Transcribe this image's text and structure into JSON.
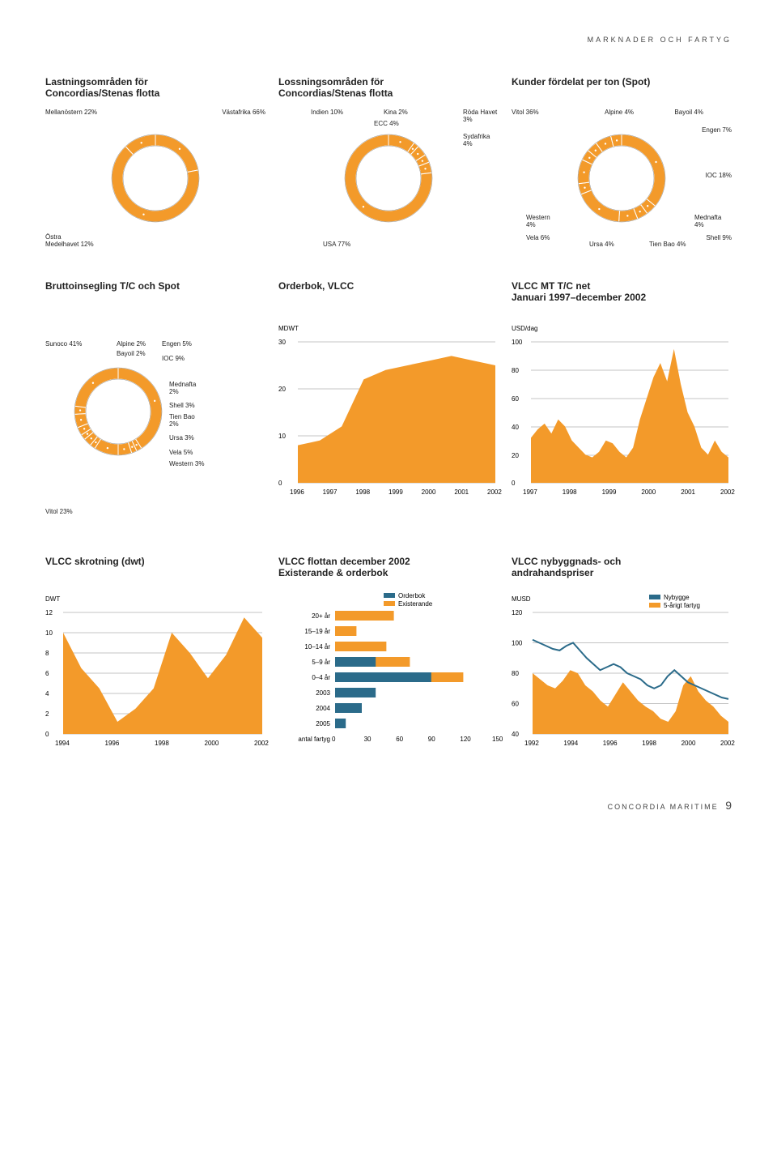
{
  "header": "MARKNADER OCH FARTYG",
  "footer_text": "CONCORDIA MARITIME",
  "footer_page": "9",
  "colors": {
    "orange": "#f39a2a",
    "blue": "#3a6f8f",
    "teal": "#2b6b8a",
    "grid": "#888888"
  },
  "row1": {
    "lastning": {
      "title": "Lastningsområden för\nConcordias/Stenas flotta",
      "slices": [
        {
          "label": "Mellanöstern 22%",
          "value": 22,
          "color": "#f39a2a"
        },
        {
          "label": "Västafrika 66%",
          "value": 66,
          "color": "#f39a2a"
        },
        {
          "label": "Östra Medelhavet 12%",
          "value": 12,
          "color": "#f39a2a"
        }
      ]
    },
    "lossning": {
      "title": "Lossningsområden för\nConcordias/Stenas flotta",
      "slices": [
        {
          "label": "Indien 10%",
          "value": 10,
          "color": "#f39a2a"
        },
        {
          "label": "Kina 2%",
          "value": 2,
          "color": "#f39a2a"
        },
        {
          "label": "ECC 4%",
          "value": 4,
          "color": "#f39a2a"
        },
        {
          "label": "Röda Havet 3%",
          "value": 3,
          "color": "#f39a2a"
        },
        {
          "label": "Sydafrika 4%",
          "value": 4,
          "color": "#f39a2a"
        },
        {
          "label": "USA 77%",
          "value": 77,
          "color": "#f39a2a"
        }
      ]
    },
    "kunder": {
      "title": "Kunder fördelat per ton (Spot)",
      "slices": [
        {
          "label": "Vitol 36%",
          "value": 36,
          "color": "#f39a2a"
        },
        {
          "label": "Alpine 4%",
          "value": 4,
          "color": "#f39a2a"
        },
        {
          "label": "Bayoil 4%",
          "value": 4,
          "color": "#f39a2a"
        },
        {
          "label": "Engen 7%",
          "value": 7,
          "color": "#f39a2a"
        },
        {
          "label": "IOC 18%",
          "value": 18,
          "color": "#f39a2a"
        },
        {
          "label": "Mednafta 4%",
          "value": 4,
          "color": "#f39a2a"
        },
        {
          "label": "Shell 9%",
          "value": 9,
          "color": "#f39a2a"
        },
        {
          "label": "Tien Bao 4%",
          "value": 4,
          "color": "#f39a2a"
        },
        {
          "label": "Ursa 4%",
          "value": 4,
          "color": "#f39a2a"
        },
        {
          "label": "Vela 6%",
          "value": 6,
          "color": "#f39a2a"
        },
        {
          "label": "Western 4%",
          "value": 4,
          "color": "#f39a2a"
        }
      ]
    }
  },
  "row2": {
    "brutto": {
      "title": "Bruttoinsegling T/C och Spot",
      "slices": [
        {
          "label": "Sunoco 41%",
          "value": 41,
          "color": "#f39a2a"
        },
        {
          "label": "Alpine 2%",
          "value": 2,
          "color": "#f39a2a"
        },
        {
          "label": "Bayoil 2%",
          "value": 2,
          "color": "#f39a2a"
        },
        {
          "label": "Engen 5%",
          "value": 5,
          "color": "#f39a2a"
        },
        {
          "label": "IOC 9%",
          "value": 9,
          "color": "#f39a2a"
        },
        {
          "label": "Mednafta 2%",
          "value": 2,
          "color": "#f39a2a"
        },
        {
          "label": "Shell 3%",
          "value": 3,
          "color": "#f39a2a"
        },
        {
          "label": "Tien Bao 2%",
          "value": 2,
          "color": "#f39a2a"
        },
        {
          "label": "Ursa 3%",
          "value": 3,
          "color": "#f39a2a"
        },
        {
          "label": "Vela 5%",
          "value": 5,
          "color": "#f39a2a"
        },
        {
          "label": "Western 3%",
          "value": 3,
          "color": "#f39a2a"
        },
        {
          "label": "Vitol 23%",
          "value": 23,
          "color": "#f39a2a"
        }
      ]
    },
    "orderbok": {
      "title": "Orderbok, VLCC",
      "y_unit": "MDWT",
      "y_ticks": [
        "30",
        "20",
        "10",
        "0"
      ],
      "x_labels": [
        "1996",
        "1997",
        "1998",
        "1999",
        "2000",
        "2001",
        "2002"
      ],
      "area_points": [
        [
          0,
          8
        ],
        [
          28,
          9
        ],
        [
          56,
          12
        ],
        [
          84,
          22
        ],
        [
          112,
          24
        ],
        [
          140,
          25
        ],
        [
          168,
          26
        ],
        [
          196,
          27
        ],
        [
          224,
          26
        ],
        [
          252,
          25
        ]
      ],
      "color": "#f39a2a"
    },
    "tc_net": {
      "title": "VLCC MT T/C net\nJanuari 1997–december 2002",
      "y_unit": "USD/dag",
      "y_ticks": [
        "100",
        "80",
        "60",
        "40",
        "20",
        "0"
      ],
      "x_labels": [
        "1997",
        "1998",
        "1999",
        "2000",
        "2001",
        "2002"
      ],
      "color": "#f39a2a"
    }
  },
  "row3": {
    "skrotning": {
      "title": "VLCC skrotning (dwt)",
      "y_unit": "DWT",
      "y_ticks": [
        "12",
        "10",
        "8",
        "6",
        "4",
        "2",
        "0"
      ],
      "x_labels": [
        "1994",
        "1996",
        "1998",
        "2000",
        "2002"
      ],
      "color": "#f39a2a"
    },
    "flottan": {
      "title": "VLCC flottan december 2002\nExisterande & orderbok",
      "legend": [
        {
          "label": "Orderbok",
          "color": "#2b6b8a"
        },
        {
          "label": "Existerande",
          "color": "#f39a2a"
        }
      ],
      "rows": [
        {
          "label": "20+ år",
          "existing": 55,
          "order": 0
        },
        {
          "label": "15–19 år",
          "existing": 20,
          "order": 0
        },
        {
          "label": "10–14 år",
          "existing": 48,
          "order": 0
        },
        {
          "label": "5–9 år",
          "existing": 70,
          "order": 38
        },
        {
          "label": "0–4 år",
          "existing": 120,
          "order": 90
        },
        {
          "label": "2003",
          "existing": 0,
          "order": 38
        },
        {
          "label": "2004",
          "existing": 0,
          "order": 25
        },
        {
          "label": "2005",
          "existing": 0,
          "order": 10
        }
      ],
      "x_label": "antal fartyg",
      "x_ticks": [
        "0",
        "30",
        "60",
        "90",
        "120",
        "150"
      ]
    },
    "priser": {
      "title": "VLCC nybyggnads- och\nandrahandspriser",
      "y_unit": "MUSD",
      "legend": [
        {
          "label": "Nybygge",
          "color": "#2b6b8a"
        },
        {
          "label": "5-årigt fartyg",
          "color": "#f39a2a"
        }
      ],
      "y_ticks": [
        "120",
        "100",
        "80",
        "60",
        "40"
      ],
      "x_labels": [
        "1992",
        "1994",
        "1996",
        "1998",
        "2000",
        "2002"
      ]
    }
  }
}
